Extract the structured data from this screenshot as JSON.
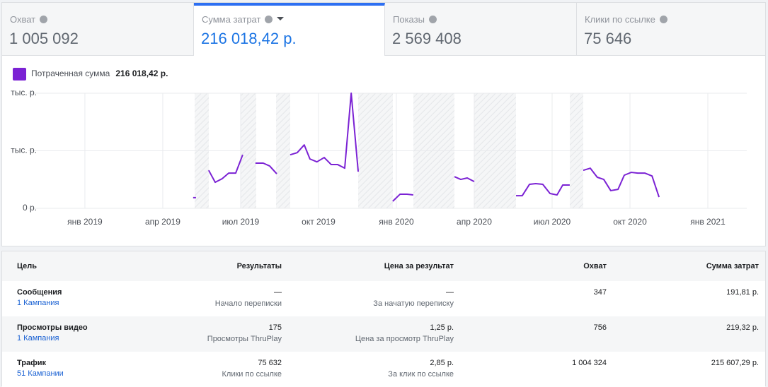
{
  "tabs": [
    {
      "label": "Охват",
      "value": "1 005 092"
    },
    {
      "label": "Сумма затрат",
      "value": "216 018,42 р."
    },
    {
      "label": "Показы",
      "value": "2 569 408"
    },
    {
      "label": "Клики по ссылке",
      "value": "75 646"
    }
  ],
  "chart_data": {
    "type": "line",
    "legend_total": "216 018,42 р.",
    "x": [
      4.17,
      4.28,
      null,
      4.77,
      5.02,
      5.29,
      5.54,
      5.81,
      6.08,
      null,
      6.57,
      6.87,
      7.12,
      7.39,
      null,
      7.91,
      8.18,
      8.45,
      8.67,
      8.94,
      9.22,
      9.49,
      9.74,
      10.01,
      10.26,
      10.53,
      null,
      11.86,
      12.14,
      12.41,
      12.65,
      null,
      14.24,
      14.48,
      14.73,
      15.0,
      null,
      16.61,
      16.85,
      17.13,
      17.37,
      17.64,
      17.92,
      18.19,
      18.41,
      18.68,
      null,
      19.2,
      19.47,
      19.74,
      19.99,
      20.26,
      20.54,
      20.78,
      21.05,
      21.3,
      21.57,
      21.85,
      22.12
    ],
    "series": [
      {
        "name": "Потраченная сумма",
        "color": "#7b22d4",
        "values": [
          370,
          370,
          null,
          1320,
          905,
          1030,
          1225,
          1225,
          1860,
          null,
          1570,
          1570,
          1470,
          1200,
          null,
          1860,
          1935,
          2205,
          1715,
          1615,
          1765,
          1520,
          1520,
          1395,
          4000,
          1275,
          null,
          245,
          490,
          490,
          465,
          null,
          1100,
          1005,
          1055,
          930,
          null,
          440,
          440,
          835,
          860,
          835,
          515,
          465,
          810,
          810,
          null,
          1320,
          1395,
          1080,
          1005,
          615,
          660,
          1150,
          1250,
          1225,
          1225,
          1125,
          390
        ]
      }
    ],
    "xlim": [
      -2.18,
      25.5
    ],
    "xticks": [
      {
        "value": 0,
        "label": "янв 2019"
      },
      {
        "value": 3,
        "label": "апр 2019"
      },
      {
        "value": 6,
        "label": "июл 2019"
      },
      {
        "value": 9,
        "label": "окт 2019"
      },
      {
        "value": 12,
        "label": "янв 2020"
      },
      {
        "value": 15,
        "label": "апр 2020"
      },
      {
        "value": 18,
        "label": "июл 2020"
      },
      {
        "value": 21,
        "label": "окт 2020"
      },
      {
        "value": 24,
        "label": "янв 2021"
      }
    ],
    "ylim": [
      0,
      4000
    ],
    "yticks": [
      {
        "value": 0,
        "label": "0 р."
      },
      {
        "value": 2000,
        "label": "тыс. р."
      },
      {
        "value": 4000,
        "label": "тыс. р."
      }
    ],
    "grid": true
  },
  "table": {
    "headers": [
      "Цель",
      "Результаты",
      "Цена за результат",
      "Охват",
      "Сумма затрат"
    ],
    "rows": [
      {
        "goal": "Сообщения",
        "link": "1 Кампания",
        "results": "—",
        "results_sub": "Начало переписки",
        "cost": "—",
        "cost_sub": "За начатую переписку",
        "reach": "347",
        "spend": "191,81 р."
      },
      {
        "goal": "Просмотры видео",
        "link": "1 Кампания",
        "results": "175",
        "results_sub": "Просмотры ThruPlay",
        "cost": "1,25 р.",
        "cost_sub": "Цена за просмотр ThruPlay",
        "reach": "756",
        "spend": "219,32 р."
      },
      {
        "goal": "Трафик",
        "link": "51 Кампании",
        "results": "75 632",
        "results_sub": "Клики по ссылке",
        "cost": "2,85 р.",
        "cost_sub": "За клик по ссылке",
        "reach": "1 004 324",
        "spend": "215 607,29 р."
      }
    ]
  }
}
